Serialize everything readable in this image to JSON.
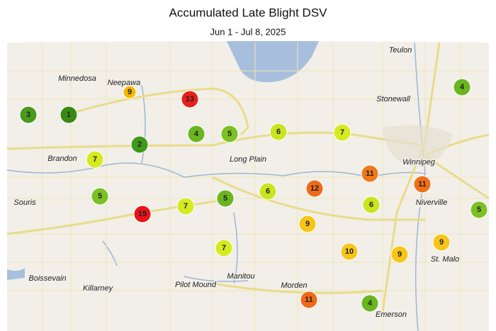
{
  "title": "Accumulated Late Blight DSV",
  "subtitle": "Jun 1 - Jul 8, 2025",
  "places": [
    "Minnedosa",
    "Neepawa",
    "Teulon",
    "Stonewall",
    "Winnipeg",
    "Brandon",
    "Long Plain",
    "Souris",
    "Niverville",
    "St. Malo",
    "Boissevain",
    "Killarney",
    "Pilot Mound",
    "Manitou",
    "Morden",
    "Emerson"
  ],
  "stations": [
    {
      "value": 3,
      "color": "#4a9a1c"
    },
    {
      "value": 1,
      "color": "#3a8a12"
    },
    {
      "value": 9,
      "color": "#f5b800"
    },
    {
      "value": 13,
      "color": "#e8201a"
    },
    {
      "value": 4,
      "color": "#6ab520"
    },
    {
      "value": 4,
      "color": "#6ab520"
    },
    {
      "value": 5,
      "color": "#7cc124"
    },
    {
      "value": 6,
      "color": "#c9e520"
    },
    {
      "value": 7,
      "color": "#d6ea20"
    },
    {
      "value": 2,
      "color": "#3f9a1a"
    },
    {
      "value": 7,
      "color": "#d6ea20"
    },
    {
      "value": 11,
      "color": "#f07818"
    },
    {
      "value": 11,
      "color": "#f07018"
    },
    {
      "value": 5,
      "color": "#7cc124"
    },
    {
      "value": 15,
      "color": "#e8141a"
    },
    {
      "value": 7,
      "color": "#d6ea20"
    },
    {
      "value": 5,
      "color": "#6ab520"
    },
    {
      "value": 6,
      "color": "#c9e520"
    },
    {
      "value": 12,
      "color": "#ef6a18"
    },
    {
      "value": 6,
      "color": "#c9e520"
    },
    {
      "value": 5,
      "color": "#7cc124"
    },
    {
      "value": 9,
      "color": "#f7c51a"
    },
    {
      "value": 7,
      "color": "#d6ea20"
    },
    {
      "value": 10,
      "color": "#f7c51a"
    },
    {
      "value": 9,
      "color": "#f7c51a"
    },
    {
      "value": 9,
      "color": "#f7c51a"
    },
    {
      "value": 11,
      "color": "#ef6a18"
    },
    {
      "value": 4,
      "color": "#6ab520"
    }
  ]
}
